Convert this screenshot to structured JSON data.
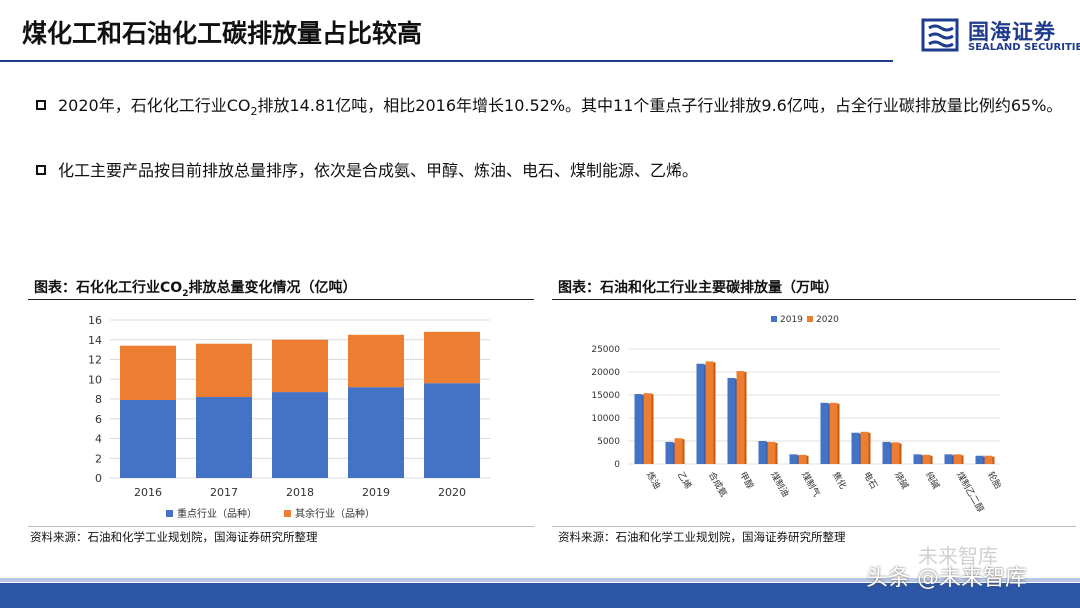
{
  "header": {
    "title": "煤化工和石油化工碳排放量占比较高",
    "logo_cn": "国海证券",
    "logo_en": "SEALAND SECURITIES"
  },
  "bullets": [
    {
      "pre": "2020年，石化化工行业CO",
      "sub": "2",
      "post": "排放14.81亿吨，相比2016年增长10.52%。其中11个重点子行业排放9.6亿吨，占全行业碳排放量比例约65%。"
    },
    {
      "pre": "化工主要产品按目前排放总量排序，依次是合成氨、甲醇、炼油、电石、煤制能源、乙烯。",
      "sub": "",
      "post": ""
    }
  ],
  "left_chart": {
    "caption_pre": "图表：石化化工行业CO",
    "caption_sub": "2",
    "caption_post": "排放总量变化情况（亿吨）",
    "source": "资料来源：石油和化学工业规划院，国海证券研究所整理"
  },
  "right_chart": {
    "caption": "图表：石油和化工行业主要碳排放量（万吨）",
    "source": "资料来源：石油和化学工业规划院，国海证券研究所整理"
  },
  "watermark": {
    "top": "未来智库",
    "bottom": "头条 @未来智库"
  },
  "chart_data": [
    {
      "type": "bar",
      "stacked": true,
      "categories": [
        "2016",
        "2017",
        "2018",
        "2019",
        "2020"
      ],
      "series": [
        {
          "name": "重点行业（品种）",
          "values": [
            7.9,
            8.2,
            8.7,
            9.2,
            9.6
          ],
          "color": "#4472c4"
        },
        {
          "name": "其余行业（品种）",
          "values": [
            5.5,
            5.4,
            5.3,
            5.3,
            5.2
          ],
          "color": "#ed7d31"
        }
      ],
      "ylim": [
        0,
        16
      ],
      "yticks": [
        "0",
        "2",
        "4",
        "6",
        "8",
        "10",
        "12",
        "14",
        "16"
      ],
      "grid": true,
      "legend": "bottom"
    },
    {
      "type": "bar",
      "categories": [
        "炼油",
        "乙烯",
        "合成氨",
        "甲醇",
        "煤制油",
        "煤制气",
        "焦化",
        "电石",
        "烧碱",
        "纯碱",
        "煤制乙二醇",
        "轮胎"
      ],
      "series": [
        {
          "name": "2019",
          "values": [
            15200,
            4800,
            21800,
            18700,
            5000,
            2100,
            13300,
            6800,
            4800,
            2100,
            2100,
            1800
          ],
          "color": "#4472c4"
        },
        {
          "name": "2020",
          "values": [
            15400,
            5600,
            22300,
            20200,
            4800,
            2000,
            13300,
            7000,
            4700,
            2000,
            2100,
            1800
          ],
          "color": "#ed7d31"
        }
      ],
      "ylim": [
        0,
        25000
      ],
      "yticks": [
        "0",
        "5000",
        "10000",
        "15000",
        "20000",
        "25000"
      ],
      "grid": true,
      "legend": "top"
    }
  ]
}
